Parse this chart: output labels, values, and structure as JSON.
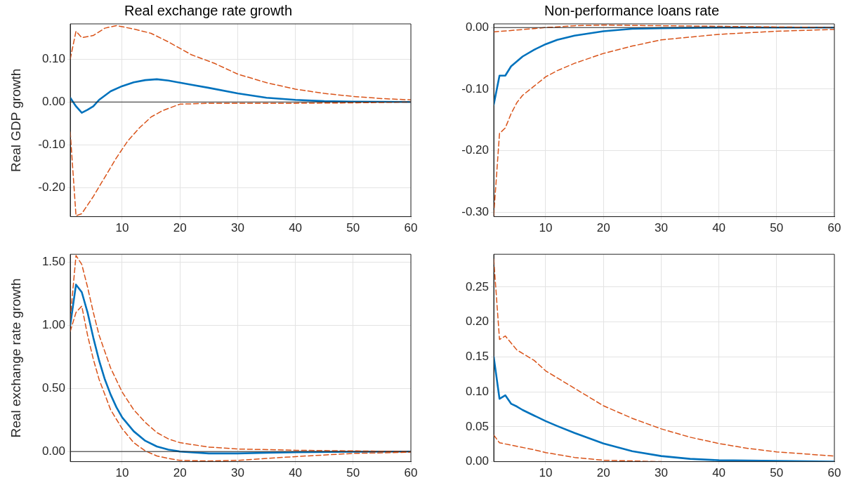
{
  "chart_data": [
    {
      "type": "line",
      "title": "Real exchange rate growth",
      "ylabel": "Real GDP growth",
      "xlim": [
        1,
        60
      ],
      "xticks": [
        10,
        20,
        30,
        40,
        50,
        60
      ],
      "ylim": [
        -0.267,
        0.182
      ],
      "yticks": [
        {
          "value": -0.2,
          "label": "-0.20"
        },
        {
          "value": -0.1,
          "label": "-0.10"
        },
        {
          "value": 0,
          "label": "0.00"
        },
        {
          "value": 0.1,
          "label": "0.10"
        }
      ],
      "grid": true,
      "ref_lines": [
        {
          "axis": "y",
          "value": 0,
          "color": "#262626"
        }
      ],
      "series": [
        {
          "color": "#d95319",
          "line_style": "dashed",
          "x": [
            1,
            2,
            3,
            5,
            7,
            9,
            12,
            15,
            18,
            22,
            26,
            30,
            35,
            40,
            45,
            50,
            55,
            60
          ],
          "values": [
            0.1,
            0.165,
            0.15,
            0.155,
            0.172,
            0.178,
            0.17,
            0.16,
            0.14,
            0.11,
            0.09,
            0.065,
            0.045,
            0.03,
            0.02,
            0.013,
            0.008,
            0.005
          ]
        },
        {
          "color": "#d95319",
          "line_style": "dashed",
          "x": [
            1,
            2,
            3,
            5,
            7,
            9,
            11,
            13,
            15,
            17,
            20,
            25,
            30,
            40,
            50,
            60
          ],
          "values": [
            -0.07,
            -0.265,
            -0.26,
            -0.22,
            -0.175,
            -0.13,
            -0.09,
            -0.06,
            -0.035,
            -0.02,
            -0.005,
            -0.003,
            -0.003,
            -0.003,
            -0.002,
            0
          ]
        },
        {
          "color": "#0072bd",
          "line_style": "solid",
          "x": [
            1,
            2,
            3,
            4,
            5,
            6,
            8,
            10,
            12,
            14,
            16,
            18,
            20,
            22,
            25,
            30,
            35,
            40,
            45,
            50,
            60
          ],
          "values": [
            0.01,
            -0.01,
            -0.025,
            -0.018,
            -0.01,
            0.005,
            0.025,
            0.037,
            0.046,
            0.051,
            0.053,
            0.05,
            0.045,
            0.04,
            0.033,
            0.02,
            0.01,
            0.005,
            0.002,
            0.001,
            0
          ]
        }
      ]
    },
    {
      "type": "line",
      "title": "Non-performance loans rate",
      "xlim": [
        1,
        60
      ],
      "xticks": [
        10,
        20,
        30,
        40,
        50,
        60
      ],
      "ylim": [
        -0.307,
        0.006
      ],
      "yticks": [
        {
          "value": -0.3,
          "label": "-0.30"
        },
        {
          "value": -0.2,
          "label": "-0.20"
        },
        {
          "value": -0.1,
          "label": "-0.10"
        },
        {
          "value": 0,
          "label": "0.00"
        }
      ],
      "grid": true,
      "ref_lines": [
        {
          "axis": "y",
          "value": 0,
          "color": "#262626"
        }
      ],
      "series": [
        {
          "color": "#d95319",
          "line_style": "dashed",
          "x": [
            1,
            5,
            10,
            15,
            20,
            30,
            40,
            50,
            60
          ],
          "values": [
            -0.007,
            -0.004,
            0,
            0.003,
            0.004,
            0.003,
            0.002,
            0.001,
            0
          ]
        },
        {
          "color": "#d95319",
          "line_style": "dashed",
          "x": [
            1,
            2,
            3,
            4,
            5,
            6,
            8,
            10,
            12,
            15,
            20,
            25,
            30,
            40,
            50,
            60
          ],
          "values": [
            -0.305,
            -0.172,
            -0.163,
            -0.14,
            -0.122,
            -0.11,
            -0.095,
            -0.08,
            -0.07,
            -0.058,
            -0.042,
            -0.03,
            -0.02,
            -0.011,
            -0.006,
            -0.003
          ]
        },
        {
          "color": "#0072bd",
          "line_style": "solid",
          "x": [
            1,
            2,
            3,
            4,
            5,
            6,
            8,
            10,
            12,
            15,
            20,
            25,
            30,
            40,
            60
          ],
          "values": [
            -0.125,
            -0.078,
            -0.078,
            -0.063,
            -0.055,
            -0.047,
            -0.036,
            -0.027,
            -0.02,
            -0.013,
            -0.006,
            -0.002,
            -0.001,
            0,
            0
          ]
        }
      ]
    },
    {
      "type": "line",
      "ylabel": "Real exchange rate growth",
      "xlim": [
        1,
        60
      ],
      "xticks": [
        10,
        20,
        30,
        40,
        50,
        60
      ],
      "ylim": [
        -0.08,
        1.56
      ],
      "yticks": [
        {
          "value": 0,
          "label": "0.00"
        },
        {
          "value": 0.5,
          "label": "0.50"
        },
        {
          "value": 1,
          "label": "1.00"
        },
        {
          "value": 1.5,
          "label": "1.50"
        }
      ],
      "grid": true,
      "ref_lines": [
        {
          "axis": "y",
          "value": 0,
          "color": "#262626"
        }
      ],
      "series": [
        {
          "color": "#d95319",
          "line_style": "dashed",
          "x": [
            1,
            2,
            3,
            4,
            5,
            6,
            8,
            10,
            12,
            14,
            16,
            18,
            20,
            25,
            30,
            40,
            50,
            60
          ],
          "values": [
            1.05,
            1.55,
            1.48,
            1.3,
            1.1,
            0.92,
            0.66,
            0.47,
            0.33,
            0.23,
            0.15,
            0.1,
            0.07,
            0.035,
            0.02,
            0.01,
            0.005,
            0
          ]
        },
        {
          "color": "#d95319",
          "line_style": "dashed",
          "x": [
            1,
            2,
            3,
            4,
            5,
            6,
            8,
            10,
            12,
            14,
            16,
            18,
            20,
            25,
            30,
            35,
            40,
            50,
            60
          ],
          "values": [
            0.95,
            1.1,
            1.15,
            0.92,
            0.73,
            0.57,
            0.33,
            0.18,
            0.07,
            0.005,
            -0.035,
            -0.055,
            -0.07,
            -0.075,
            -0.07,
            -0.055,
            -0.04,
            -0.015,
            -0.005
          ]
        },
        {
          "color": "#0072bd",
          "line_style": "solid",
          "x": [
            1,
            2,
            3,
            4,
            5,
            6,
            7,
            8,
            9,
            10,
            12,
            14,
            16,
            18,
            20,
            25,
            30,
            35,
            40,
            50,
            60
          ],
          "values": [
            1.0,
            1.32,
            1.26,
            1.1,
            0.9,
            0.72,
            0.57,
            0.45,
            0.35,
            0.27,
            0.16,
            0.085,
            0.04,
            0.015,
            0,
            -0.015,
            -0.015,
            -0.01,
            -0.005,
            -0.002,
            0
          ]
        }
      ]
    },
    {
      "type": "line",
      "xlim": [
        1,
        60
      ],
      "xticks": [
        10,
        20,
        30,
        40,
        50,
        60
      ],
      "ylim": [
        0,
        0.297
      ],
      "yticks": [
        {
          "value": 0,
          "label": "0.00"
        },
        {
          "value": 0.05,
          "label": "0.05"
        },
        {
          "value": 0.1,
          "label": "0.10"
        },
        {
          "value": 0.15,
          "label": "0.15"
        },
        {
          "value": 0.2,
          "label": "0.20"
        },
        {
          "value": 0.25,
          "label": "0.25"
        }
      ],
      "grid": true,
      "series": [
        {
          "color": "#d95319",
          "line_style": "dashed",
          "x": [
            1,
            2,
            3,
            4,
            5,
            8,
            10,
            15,
            20,
            25,
            30,
            35,
            40,
            45,
            50,
            55,
            60
          ],
          "values": [
            0.29,
            0.175,
            0.18,
            0.17,
            0.16,
            0.145,
            0.13,
            0.105,
            0.08,
            0.062,
            0.047,
            0.035,
            0.026,
            0.019,
            0.014,
            0.011,
            0.008
          ]
        },
        {
          "color": "#d95319",
          "line_style": "dashed",
          "x": [
            1,
            2,
            5,
            8,
            10,
            15,
            20,
            30
          ],
          "values": [
            0.038,
            0.027,
            0.022,
            0.017,
            0.013,
            0.006,
            0.002,
            0
          ]
        },
        {
          "color": "#0072bd",
          "line_style": "solid",
          "x": [
            1,
            2,
            3,
            4,
            5,
            6,
            8,
            10,
            12,
            15,
            20,
            25,
            30,
            35,
            40,
            50,
            60
          ],
          "values": [
            0.15,
            0.09,
            0.095,
            0.083,
            0.079,
            0.074,
            0.066,
            0.058,
            0.051,
            0.041,
            0.026,
            0.015,
            0.008,
            0.004,
            0.002,
            0.001,
            0
          ]
        }
      ]
    }
  ]
}
